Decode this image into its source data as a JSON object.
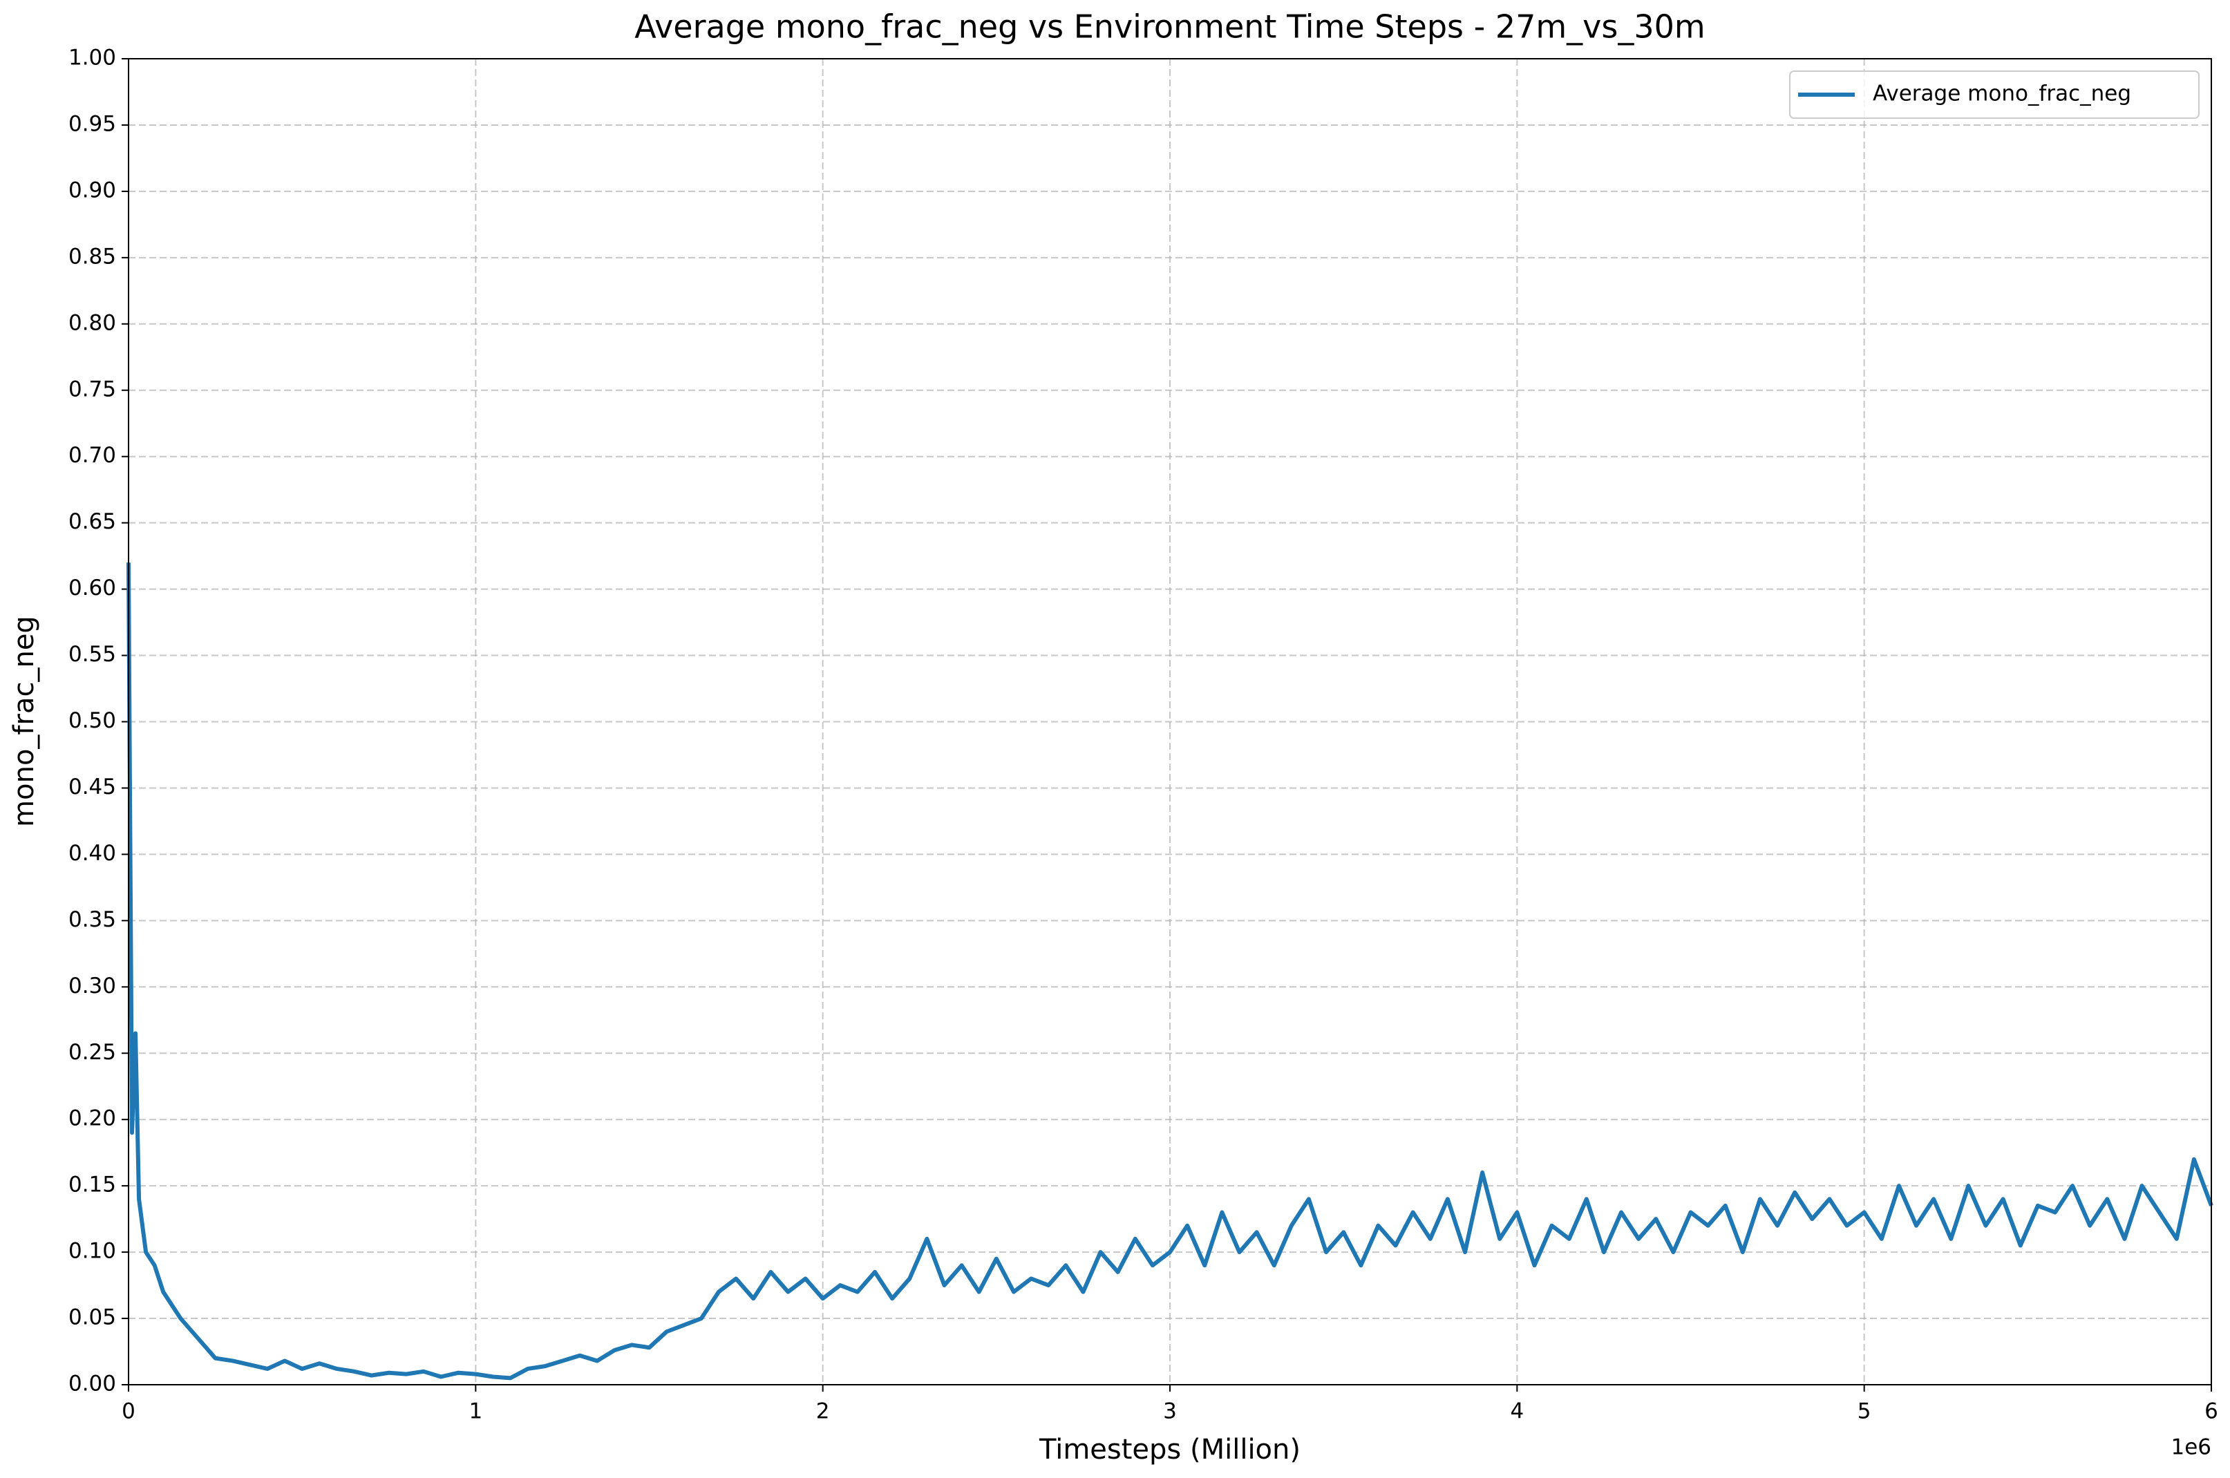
{
  "chart_data": {
    "type": "line",
    "title": "Average mono_frac_neg vs Environment Time Steps - 27m_vs_30m",
    "xlabel": "Timesteps (Million)",
    "ylabel": "mono_frac_neg",
    "x_offset_label": "1e6",
    "xlim": [
      0,
      6000000
    ],
    "ylim": [
      0,
      1
    ],
    "xticks": [
      0,
      {
        "value": 1000000,
        "label": "1"
      },
      {
        "value": 2000000,
        "label": "2"
      },
      {
        "value": 3000000,
        "label": "3"
      },
      {
        "value": 4000000,
        "label": "4"
      },
      {
        "value": 5000000,
        "label": "5"
      },
      {
        "value": 6000000,
        "label": "6"
      }
    ],
    "yticks": [
      {
        "value": 0,
        "label": "0.00"
      },
      {
        "value": 0.05,
        "label": "0.05"
      },
      {
        "value": 0.1,
        "label": "0.10"
      },
      {
        "value": 0.15,
        "label": "0.15"
      },
      {
        "value": 0.2,
        "label": "0.20"
      },
      {
        "value": 0.25,
        "label": "0.25"
      },
      {
        "value": 0.3,
        "label": "0.30"
      },
      {
        "value": 0.35,
        "label": "0.35"
      },
      {
        "value": 0.4,
        "label": "0.40"
      },
      {
        "value": 0.45,
        "label": "0.45"
      },
      {
        "value": 0.5,
        "label": "0.50"
      },
      {
        "value": 0.55,
        "label": "0.55"
      },
      {
        "value": 0.6,
        "label": "0.60"
      },
      {
        "value": 0.65,
        "label": "0.65"
      },
      {
        "value": 0.7,
        "label": "0.70"
      },
      {
        "value": 0.75,
        "label": "0.75"
      },
      {
        "value": 0.8,
        "label": "0.80"
      },
      {
        "value": 0.85,
        "label": "0.85"
      },
      {
        "value": 0.9,
        "label": "0.90"
      },
      {
        "value": 0.95,
        "label": "0.95"
      },
      {
        "value": 1,
        "label": "1.00"
      }
    ],
    "grid": true,
    "legend": "upper right",
    "x": [
      0,
      10000,
      20000,
      30000,
      50000,
      75000,
      100000,
      150000,
      200000,
      250000,
      300000,
      350000,
      400000,
      450000,
      500000,
      550000,
      600000,
      650000,
      700000,
      750000,
      800000,
      850000,
      900000,
      950000,
      1000000,
      1050000,
      1100000,
      1150000,
      1200000,
      1250000,
      1300000,
      1350000,
      1400000,
      1450000,
      1500000,
      1550000,
      1600000,
      1650000,
      1700000,
      1750000,
      1800000,
      1850000,
      1900000,
      1950000,
      2000000,
      2050000,
      2100000,
      2150000,
      2200000,
      2250000,
      2300000,
      2350000,
      2400000,
      2450000,
      2500000,
      2550000,
      2600000,
      2650000,
      2700000,
      2750000,
      2800000,
      2850000,
      2900000,
      2950000,
      3000000,
      3050000,
      3100000,
      3150000,
      3200000,
      3250000,
      3300000,
      3350000,
      3400000,
      3450000,
      3500000,
      3550000,
      3600000,
      3650000,
      3700000,
      3750000,
      3800000,
      3850000,
      3900000,
      3950000,
      4000000,
      4050000,
      4100000,
      4150000,
      4200000,
      4250000,
      4300000,
      4350000,
      4400000,
      4450000,
      4500000,
      4550000,
      4600000,
      4650000,
      4700000,
      4750000,
      4800000,
      4850000,
      4900000,
      4950000,
      5000000,
      5050000,
      5100000,
      5150000,
      5200000,
      5250000,
      5300000,
      5350000,
      5400000,
      5450000,
      5500000,
      5550000,
      5600000,
      5650000,
      5700000,
      5750000,
      5800000,
      5850000,
      5900000,
      5950000,
      6000000
    ],
    "series": [
      {
        "name": "Average mono_frac_neg",
        "color": "#1f77b4",
        "values": [
          0.62,
          0.19,
          0.265,
          0.14,
          0.1,
          0.09,
          0.07,
          0.05,
          0.035,
          0.02,
          0.018,
          0.015,
          0.012,
          0.018,
          0.012,
          0.016,
          0.012,
          0.01,
          0.007,
          0.009,
          0.008,
          0.01,
          0.006,
          0.009,
          0.008,
          0.006,
          0.005,
          0.012,
          0.014,
          0.018,
          0.022,
          0.018,
          0.026,
          0.03,
          0.028,
          0.04,
          0.045,
          0.05,
          0.07,
          0.08,
          0.065,
          0.085,
          0.07,
          0.08,
          0.065,
          0.075,
          0.07,
          0.085,
          0.065,
          0.08,
          0.11,
          0.075,
          0.09,
          0.07,
          0.095,
          0.07,
          0.08,
          0.075,
          0.09,
          0.07,
          0.1,
          0.085,
          0.11,
          0.09,
          0.1,
          0.12,
          0.09,
          0.13,
          0.1,
          0.115,
          0.09,
          0.12,
          0.14,
          0.1,
          0.115,
          0.09,
          0.12,
          0.105,
          0.13,
          0.11,
          0.14,
          0.1,
          0.16,
          0.11,
          0.13,
          0.09,
          0.12,
          0.11,
          0.14,
          0.1,
          0.13,
          0.11,
          0.125,
          0.1,
          0.13,
          0.12,
          0.135,
          0.1,
          0.14,
          0.12,
          0.145,
          0.125,
          0.14,
          0.12,
          0.13,
          0.11,
          0.15,
          0.12,
          0.14,
          0.11,
          0.15,
          0.12,
          0.14,
          0.105,
          0.135,
          0.13,
          0.15,
          0.12,
          0.14,
          0.11,
          0.15,
          0.13,
          0.11,
          0.17,
          0.135
        ]
      }
    ]
  }
}
